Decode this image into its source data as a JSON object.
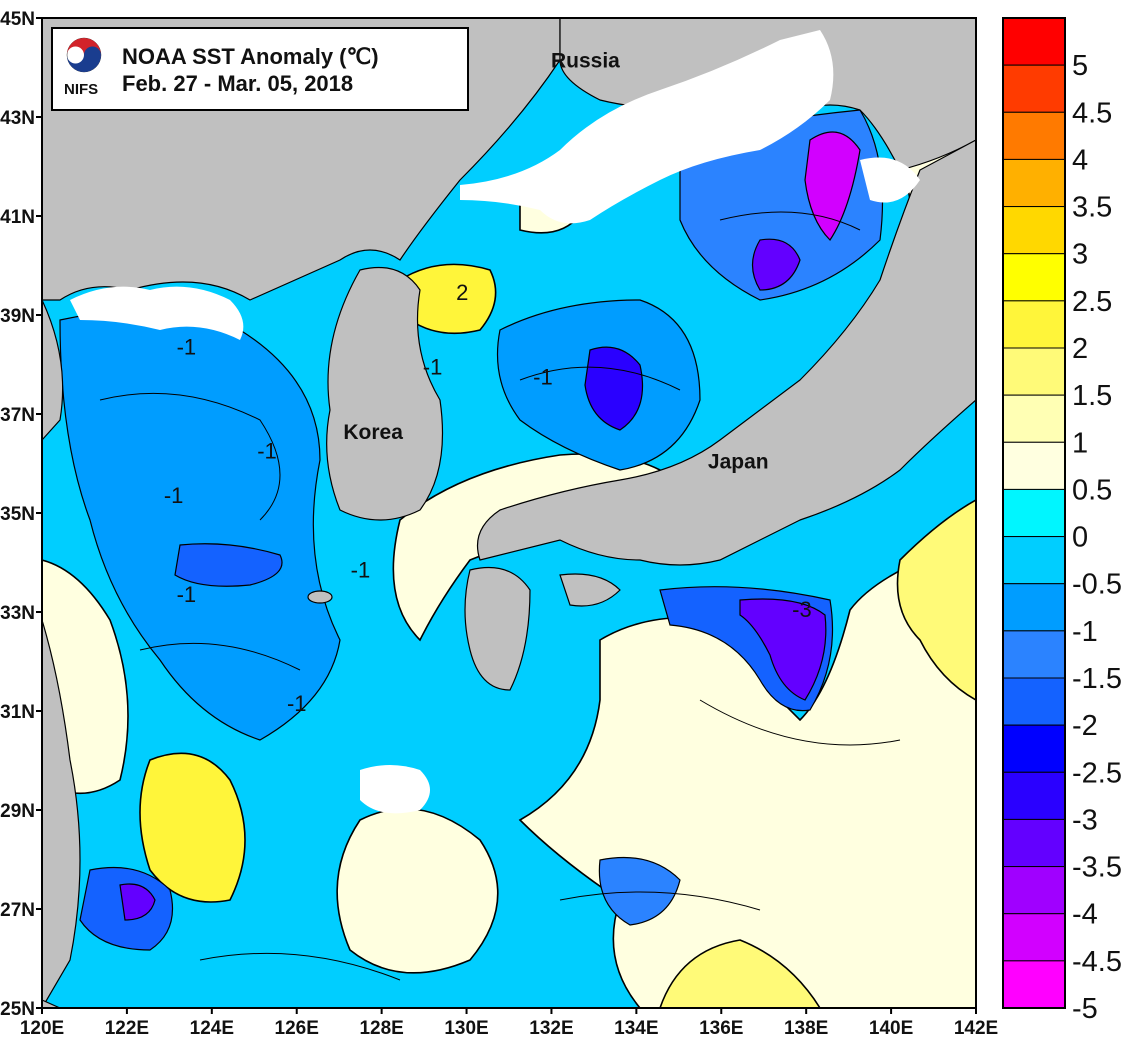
{
  "title": {
    "line1": "NOAA SST Anomaly (℃)",
    "line2": "Feb. 27 - Mar. 05,  2018",
    "logo_text": "NIFS"
  },
  "x_ticks": [
    "120E",
    "122E",
    "124E",
    "126E",
    "128E",
    "130E",
    "132E",
    "134E",
    "136E",
    "138E",
    "140E",
    "142E"
  ],
  "y_ticks": [
    "25N",
    "27N",
    "29N",
    "31N",
    "33N",
    "35N",
    "37N",
    "39N",
    "41N",
    "43N",
    "45N"
  ],
  "places": [
    {
      "key": "russia",
      "label": "Russia",
      "lon": 132.8,
      "lat": 44.0
    },
    {
      "key": "korea",
      "label": "Korea",
      "lon": 127.8,
      "lat": 36.5
    },
    {
      "key": "japan",
      "label": "Japan",
      "lon": 136.4,
      "lat": 35.9
    }
  ],
  "contour_labels": [
    {
      "text": "2",
      "lon": 129.9,
      "lat": 39.3
    },
    {
      "text": "-1",
      "lon": 123.4,
      "lat": 38.2
    },
    {
      "text": "-1",
      "lon": 125.3,
      "lat": 36.1
    },
    {
      "text": "-1",
      "lon": 123.1,
      "lat": 35.2
    },
    {
      "text": "-1",
      "lon": 123.4,
      "lat": 33.2
    },
    {
      "text": "-1",
      "lon": 129.2,
      "lat": 37.8
    },
    {
      "text": "-1",
      "lon": 131.8,
      "lat": 37.6
    },
    {
      "text": "-1",
      "lon": 127.5,
      "lat": 33.7
    },
    {
      "text": "-1",
      "lon": 126.0,
      "lat": 31.0
    },
    {
      "text": "-3",
      "lon": 137.9,
      "lat": 32.9
    }
  ],
  "colorbar": {
    "labels": [
      "5",
      "4.5",
      "4",
      "3.5",
      "3",
      "2.5",
      "2",
      "1.5",
      "1",
      "0.5",
      "0",
      "-0.5",
      "-1",
      "-1.5",
      "-2",
      "-2.5",
      "-3",
      "-3.5",
      "-4",
      "-4.5",
      "-5"
    ],
    "colors": [
      "#ff0000",
      "#ff3b00",
      "#ff7a00",
      "#ffb000",
      "#ffd800",
      "#ffff00",
      "#fff53a",
      "#fffa78",
      "#ffffb4",
      "#ffffe0",
      "#00f6ff",
      "#00ceff",
      "#009dff",
      "#2b83ff",
      "#1462ff",
      "#0000ff",
      "#2a00ff",
      "#6300ff",
      "#a000ff",
      "#d200ff",
      "#ff00ff"
    ]
  },
  "map_colors": {
    "land": "#c0c0c0",
    "ice_cloud": "#ffffff",
    "frame": "#000000"
  }
}
